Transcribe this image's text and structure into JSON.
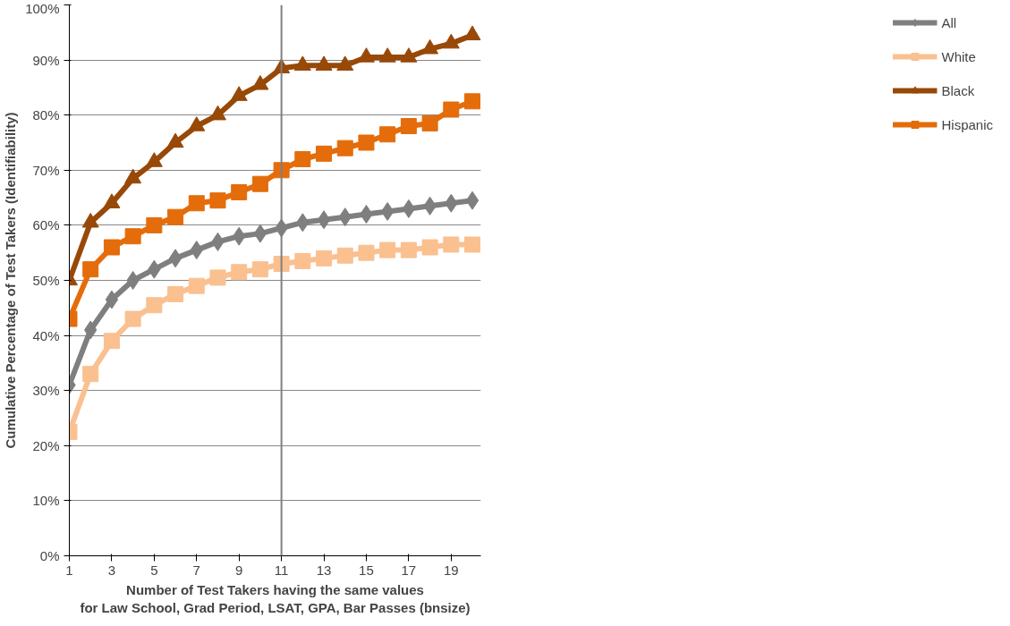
{
  "chart_data": {
    "type": "line",
    "xlabel": "Number of Test Takers having the same values\nfor Law School, Grad Period, LSAT, GPA, Bar Passes (bnsize)",
    "ylabel": "Cumulative Percentage of Test Takers (Identifiability)",
    "x": [
      1,
      2,
      3,
      4,
      5,
      6,
      7,
      8,
      9,
      10,
      11,
      12,
      13,
      14,
      15,
      16,
      17,
      18,
      19,
      20
    ],
    "xlim": [
      1,
      20.4
    ],
    "xticks": [
      1,
      3,
      5,
      7,
      9,
      11,
      13,
      15,
      17,
      19
    ],
    "ylim": [
      0,
      100
    ],
    "yticks": [
      {
        "value": 0,
        "label": "0%"
      },
      {
        "value": 10,
        "label": "10%"
      },
      {
        "value": 20,
        "label": "20%"
      },
      {
        "value": 30,
        "label": "30%"
      },
      {
        "value": 40,
        "label": "40%"
      },
      {
        "value": 50,
        "label": "50%"
      },
      {
        "value": 60,
        "label": "60%"
      },
      {
        "value": 70,
        "label": "70%"
      },
      {
        "value": 80,
        "label": "80%"
      },
      {
        "value": 90,
        "label": "90%"
      },
      {
        "value": 100,
        "label": "100%"
      }
    ],
    "grid": "y",
    "legend": "right",
    "line_style": "solid",
    "ref_lines": [
      {
        "axis": "x",
        "value": 11,
        "color": "#7f7f7f"
      }
    ],
    "series": [
      {
        "name": "All",
        "color": "#7f7f7f",
        "marker": "diamond",
        "values": [
          31,
          41,
          46.5,
          50,
          52,
          54,
          55.5,
          57,
          58,
          58.5,
          59.5,
          60.5,
          61,
          61.5,
          62,
          62.5,
          63,
          63.5,
          64,
          64.5
        ]
      },
      {
        "name": "White",
        "color": "#fac090",
        "marker": "square",
        "values": [
          22.5,
          33,
          39,
          43,
          45.5,
          47.5,
          49,
          50.5,
          51.5,
          52,
          53,
          53.5,
          54,
          54.5,
          55,
          55.5,
          55.5,
          56,
          56.5,
          56.5
        ]
      },
      {
        "name": "Black",
        "color": "#984807",
        "marker": "triangle",
        "values": [
          50,
          60.5,
          64,
          68.5,
          71.5,
          75,
          78,
          80,
          83.5,
          85.5,
          88.5,
          89,
          89,
          89,
          90.5,
          90.5,
          90.5,
          92,
          93,
          94.5
        ]
      },
      {
        "name": "Hispanic",
        "color": "#e46c0a",
        "marker": "square",
        "values": [
          43,
          52,
          56,
          58,
          60,
          61.5,
          64,
          64.5,
          66,
          67.5,
          70,
          72,
          73,
          74,
          75,
          76.5,
          78,
          78.5,
          81,
          82.5
        ]
      }
    ]
  }
}
